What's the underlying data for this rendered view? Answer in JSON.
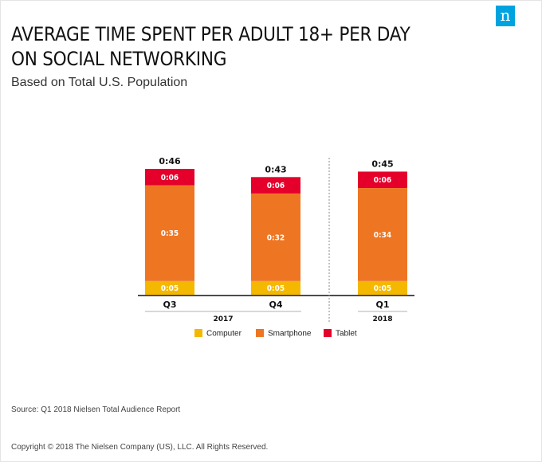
{
  "brand": {
    "logo_glyph": "n",
    "logo_color": "#00a3e0"
  },
  "header": {
    "title_line1": "AVERAGE TIME SPENT PER ADULT 18+ PER DAY",
    "title_line2": "ON SOCIAL NETWORKING",
    "subtitle": "Based on Total U.S. Population"
  },
  "chart_data": {
    "type": "bar",
    "stacked": true,
    "title": "AVERAGE TIME SPENT PER ADULT 18+ PER DAY ON SOCIAL NETWORKING",
    "subtitle": "Based on Total U.S. Population",
    "unit": "minutes (h:mm)",
    "categories": [
      "Q3",
      "Q4",
      "Q1"
    ],
    "category_groups": [
      {
        "label": "2017",
        "categories": [
          "Q3",
          "Q4"
        ]
      },
      {
        "label": "2018",
        "categories": [
          "Q1"
        ]
      }
    ],
    "totals": [
      "0:46",
      "0:43",
      "0:45"
    ],
    "series": [
      {
        "name": "Computer",
        "color": "#f5b800",
        "values": [
          5,
          5,
          5
        ],
        "labels": [
          "0:05",
          "0:05",
          "0:05"
        ]
      },
      {
        "name": "Smartphone",
        "color": "#ee7623",
        "values": [
          35,
          32,
          34
        ],
        "labels": [
          "0:35",
          "0:32",
          "0:34"
        ]
      },
      {
        "name": "Tablet",
        "color": "#e4002b",
        "values": [
          6,
          6,
          6
        ],
        "labels": [
          "0:06",
          "0:06",
          "0:06"
        ]
      }
    ],
    "ylim": [
      0,
      46
    ],
    "legend_position": "bottom",
    "grid": false
  },
  "footer": {
    "source": "Source: Q1 2018 Nielsen Total Audience Report",
    "copyright": "Copyright © 2018 The Nielsen Company (US), LLC. All Rights Reserved."
  }
}
